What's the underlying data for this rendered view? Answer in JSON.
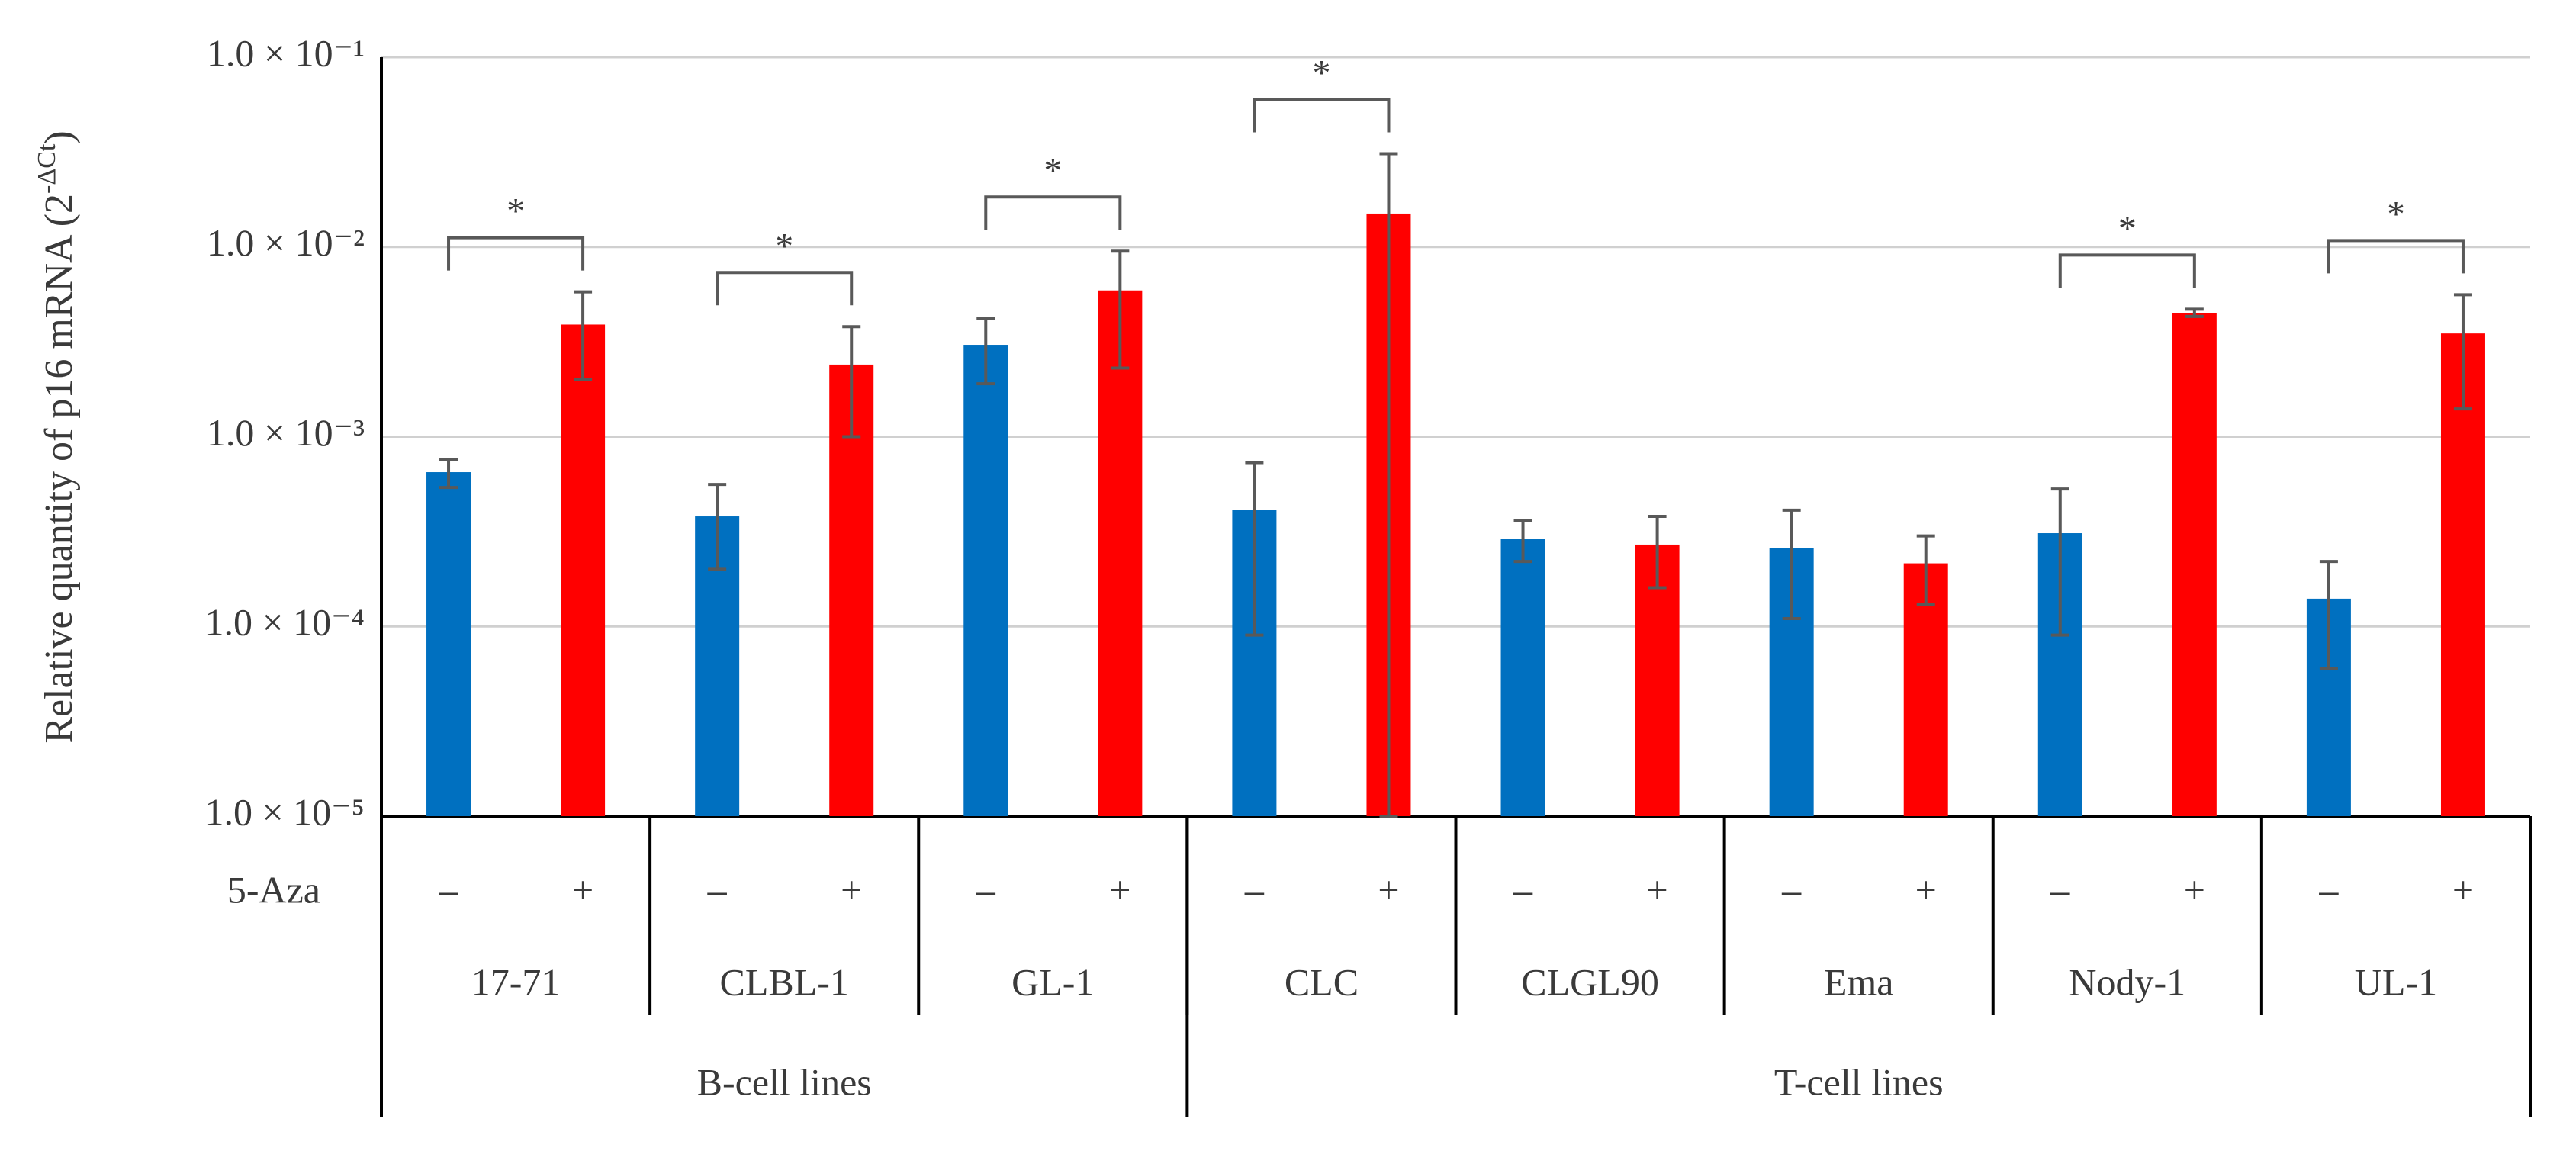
{
  "chart_data": {
    "type": "bar",
    "y_label": {
      "text": "Relative quantity of p16 mRNA (2",
      "sup": "-ΔCt",
      "end": ")"
    },
    "x_row_label": "5-Aza",
    "categories": [
      "17-71",
      "CLBL-1",
      "GL-1",
      "CLC",
      "CLGL90",
      "Ema",
      "Nody-1",
      "UL-1"
    ],
    "groups": [
      {
        "label": "B-cell lines",
        "size": 3
      },
      {
        "label": "T-cell lines",
        "size": 5
      }
    ],
    "series": [
      {
        "name": "–",
        "color": "#0070c0",
        "values": [
          0.00065,
          0.00038,
          0.00305,
          0.00041,
          0.00029,
          0.00026,
          0.00031,
          0.00014
        ],
        "errors": [
          0.00011,
          0.00018,
          0.00115,
          0.00032,
          7e-05,
          0.00015,
          0.00022,
          8e-05
        ]
      },
      {
        "name": "+",
        "color": "#ff0000",
        "values": [
          0.0039,
          0.0024,
          0.0059,
          0.015,
          0.00027,
          0.000215,
          0.0045,
          0.0035
        ],
        "errors": [
          0.0019,
          0.0014,
          0.0036,
          0.016,
          0.00011,
          8.5e-05,
          0.0002,
          0.0021
        ]
      }
    ],
    "annotations": [
      "*",
      "*",
      "*",
      "*",
      null,
      null,
      "*",
      "*"
    ],
    "ylog": true,
    "ylim": [
      1e-05,
      0.1
    ],
    "yticks": [
      {
        "value": 1e-05,
        "label": "1.0 × 10⁻⁵"
      },
      {
        "value": 0.0001,
        "label": "1.0 × 10⁻⁴"
      },
      {
        "value": 0.001,
        "label": "1.0 × 10⁻³"
      },
      {
        "value": 0.01,
        "label": "1.0 × 10⁻²"
      },
      {
        "value": 0.1,
        "label": "1.0 × 10⁻¹"
      }
    ],
    "grid": true
  }
}
